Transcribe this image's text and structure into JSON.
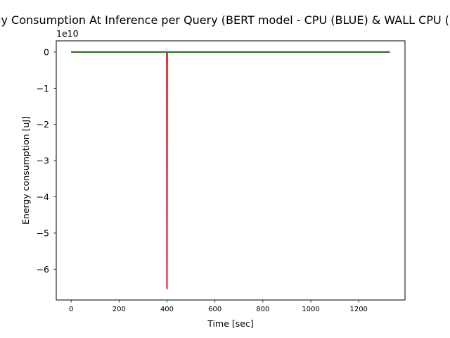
{
  "chart_data": {
    "type": "line",
    "title": "Energy Consumption At Inference per Query (BERT model - CPU (BLUE) & WALL CPU (RED))",
    "xlabel": "Time [sec]",
    "ylabel": "Energy consumption [uJ]",
    "y_offset_label": "1e10",
    "xlim": [
      -62,
      1393
    ],
    "ylim": [
      -6.85,
      0.31
    ],
    "y_scale_factor": 10000000000.0,
    "x_ticks": [
      0,
      200,
      400,
      600,
      800,
      1000,
      1200
    ],
    "x_tick_labels": [
      "0",
      "200",
      "400",
      "600",
      "800",
      "1000",
      "1200"
    ],
    "y_ticks": [
      0,
      -1,
      -2,
      -3,
      -4,
      -5,
      -6
    ],
    "y_tick_labels": [
      "0",
      "−1",
      "−2",
      "−3",
      "−4",
      "−5",
      "−6"
    ],
    "grid": false,
    "series": [
      {
        "color": "#1f3fbf",
        "points": [
          [
            0,
            0
          ],
          [
            1330,
            0
          ]
        ]
      },
      {
        "color": "#e31a1c",
        "points": [
          [
            0,
            0
          ],
          [
            399,
            0
          ],
          [
            400,
            -6.55
          ],
          [
            401,
            0
          ],
          [
            1330,
            0
          ]
        ]
      },
      {
        "color": "#2e7d32",
        "points": [
          [
            0,
            0
          ],
          [
            1330,
            0
          ]
        ]
      }
    ]
  }
}
